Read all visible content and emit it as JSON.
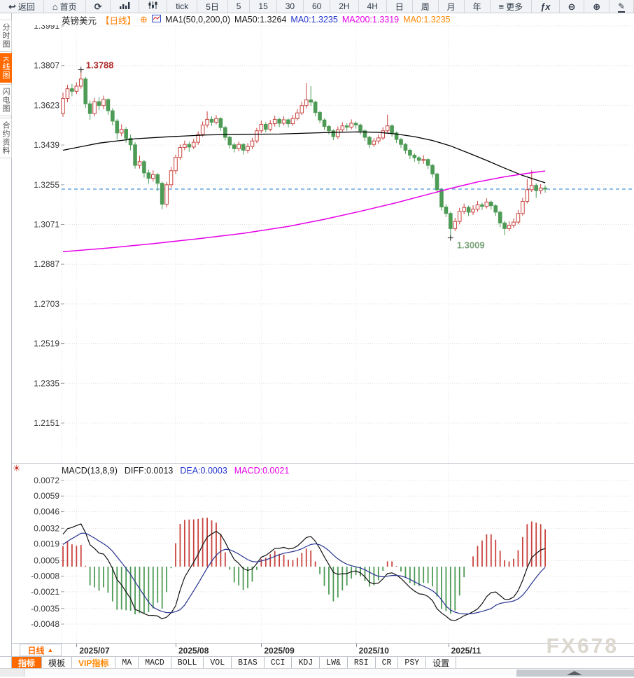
{
  "topbar": {
    "items": [
      {
        "name": "back",
        "icon": "back-arrow-icon",
        "label": "返回"
      },
      {
        "name": "home",
        "icon": "home-icon",
        "label": "首页"
      },
      {
        "name": "refresh",
        "icon": "refresh-icon",
        "label": ""
      },
      {
        "name": "stats",
        "icon": "bar-chart-icon",
        "label": ""
      },
      {
        "name": "candle-style",
        "icon": "candlestick-icon",
        "label": ""
      },
      {
        "name": "period-tick",
        "icon": "",
        "label": "tick"
      },
      {
        "name": "period-5d",
        "icon": "",
        "label": "5日"
      },
      {
        "name": "period-5",
        "icon": "",
        "label": "5"
      },
      {
        "name": "period-15",
        "icon": "",
        "label": "15"
      },
      {
        "name": "period-30",
        "icon": "",
        "label": "30"
      },
      {
        "name": "period-60",
        "icon": "",
        "label": "60"
      },
      {
        "name": "period-2h",
        "icon": "",
        "label": "2H"
      },
      {
        "name": "period-4h",
        "icon": "",
        "label": "4H"
      },
      {
        "name": "period-day",
        "icon": "",
        "label": "日"
      },
      {
        "name": "period-week",
        "icon": "",
        "label": "周"
      },
      {
        "name": "period-month",
        "icon": "",
        "label": "月"
      },
      {
        "name": "period-year",
        "icon": "",
        "label": "年"
      },
      {
        "name": "more",
        "icon": "menu-icon",
        "label": "更多"
      },
      {
        "name": "formula",
        "icon": "fx-icon",
        "label": ""
      },
      {
        "name": "zoom-out",
        "icon": "zoom-out-icon",
        "label": ""
      },
      {
        "name": "zoom-in",
        "icon": "zoom-in-icon",
        "label": ""
      },
      {
        "name": "draw",
        "icon": "pencil-icon",
        "label": ""
      }
    ]
  },
  "sidebar": {
    "items": [
      {
        "label": "分时图",
        "selected": false
      },
      {
        "label": "K线图",
        "selected": true
      },
      {
        "label": "闪电图",
        "selected": false
      },
      {
        "label": "合约资料",
        "selected": false
      }
    ]
  },
  "chart_header": {
    "symbol": "英镑美元",
    "period": "【日线】",
    "expand_icon": "⊕",
    "ma_settings": "MA1(50,0,200,0)",
    "ma50": "MA50:1.3264",
    "ma0_fast": "MA0:1.3235",
    "ma200": "MA200:1.3319",
    "ma0_slow": "MA0:1.3235"
  },
  "macd_header": {
    "title": "MACD(13,8,9)",
    "diff": "DIFF:0.0013",
    "dea": "DEA:0.0003",
    "macd": "MACD:0.0021",
    "settings_icon": "☀"
  },
  "bottom_bar": {
    "period_label": "日线",
    "period_arrow": "▲",
    "tabs": [
      {
        "label": "指标",
        "state": "selected"
      },
      {
        "label": "模板",
        "state": "normal"
      },
      {
        "label": "VIP指标",
        "state": "accent"
      },
      {
        "label": "MA",
        "state": "normal"
      },
      {
        "label": "MACD",
        "state": "normal"
      },
      {
        "label": "BOLL",
        "state": "normal"
      },
      {
        "label": "VOL",
        "state": "normal"
      },
      {
        "label": "BIAS",
        "state": "normal"
      },
      {
        "label": "CCI",
        "state": "normal"
      },
      {
        "label": "KDJ",
        "state": "normal"
      },
      {
        "label": "LW&",
        "state": "normal"
      },
      {
        "label": "RSI",
        "state": "normal"
      },
      {
        "label": "CR",
        "state": "normal"
      },
      {
        "label": "PSY",
        "state": "normal"
      },
      {
        "label": "设置",
        "state": "normal"
      }
    ]
  },
  "watermark": "FX678",
  "colors": {
    "up": "#c9433d",
    "down": "#4d9b55",
    "ma50": "#000000",
    "ma200": "#e600e6",
    "current_price_line": "#1d7ad4",
    "diff_line": "#111111",
    "dea_line": "#27338f",
    "accent": "#ff6a00",
    "high_label": "#b03030",
    "low_label": "#7ba37b"
  },
  "chart_data": {
    "type": "candlestick",
    "title": "英镑美元 日线 (GBP/USD Daily) with MA50/MA200 and MACD(13,8,9)",
    "y_ticks_main": [
      1.3991,
      1.3807,
      1.3623,
      1.3439,
      1.3255,
      1.3071,
      1.2887,
      1.2703,
      1.2519,
      1.2335,
      1.2151
    ],
    "y_ticks_macd": [
      0.0072,
      0.0059,
      0.0046,
      0.0032,
      0.0019,
      0.0005,
      -0.0008,
      -0.0021,
      -0.0035,
      -0.0048
    ],
    "x_ticks": [
      {
        "day": 3,
        "label": "2025/07"
      },
      {
        "day": 25,
        "label": "2025/08"
      },
      {
        "day": 44,
        "label": "2025/09"
      },
      {
        "day": 65,
        "label": "2025/10"
      },
      {
        "day": 85.5,
        "label": "2025/11"
      }
    ],
    "current_price": 1.3235,
    "high_annotation": {
      "day": 4,
      "price": 1.3788,
      "label": "1.3788"
    },
    "low_annotation": {
      "day": 86,
      "price": 1.3009,
      "label": "1.3009"
    },
    "ma50_points": [
      [
        0,
        1.3415
      ],
      [
        8,
        1.3448
      ],
      [
        16,
        1.3468
      ],
      [
        24,
        1.3478
      ],
      [
        32,
        1.3486
      ],
      [
        40,
        1.3489
      ],
      [
        48,
        1.349
      ],
      [
        54,
        1.3494
      ],
      [
        60,
        1.3498
      ],
      [
        66,
        1.35
      ],
      [
        70,
        1.3498
      ],
      [
        74,
        1.349
      ],
      [
        78,
        1.3478
      ],
      [
        82,
        1.346
      ],
      [
        86,
        1.3435
      ],
      [
        90,
        1.3402
      ],
      [
        94,
        1.3368
      ],
      [
        98,
        1.3332
      ],
      [
        102,
        1.3298
      ],
      [
        107,
        1.3264
      ]
    ],
    "ma200_points": [
      [
        0,
        1.2945
      ],
      [
        10,
        1.2962
      ],
      [
        20,
        1.2982
      ],
      [
        30,
        1.3005
      ],
      [
        40,
        1.303
      ],
      [
        50,
        1.3062
      ],
      [
        58,
        1.3095
      ],
      [
        66,
        1.3132
      ],
      [
        74,
        1.3172
      ],
      [
        80,
        1.3205
      ],
      [
        86,
        1.3238
      ],
      [
        92,
        1.3268
      ],
      [
        98,
        1.3292
      ],
      [
        103,
        1.3308
      ],
      [
        107,
        1.3319
      ]
    ],
    "macd_params": "13,8,9",
    "macd_warmup_closes": [
      1.346,
      1.3475,
      1.349,
      1.3505,
      1.352,
      1.3535,
      1.355,
      1.3565,
      1.358,
      1.3595,
      1.361,
      1.3625
    ],
    "candles": [
      [
        1.3585,
        1.3682,
        1.357,
        1.3655
      ],
      [
        1.3655,
        1.3718,
        1.3638,
        1.37
      ],
      [
        1.37,
        1.3722,
        1.3665,
        1.3688
      ],
      [
        1.3688,
        1.373,
        1.3675,
        1.3712
      ],
      [
        1.3712,
        1.3788,
        1.37,
        1.3745
      ],
      [
        1.3745,
        1.3755,
        1.361,
        1.363
      ],
      [
        1.363,
        1.3645,
        1.3555,
        1.3585
      ],
      [
        1.3585,
        1.3658,
        1.3572,
        1.364
      ],
      [
        1.364,
        1.366,
        1.36,
        1.3622
      ],
      [
        1.3622,
        1.3668,
        1.3605,
        1.365
      ],
      [
        1.365,
        1.3655,
        1.358,
        1.3598
      ],
      [
        1.3598,
        1.361,
        1.353,
        1.355
      ],
      [
        1.355,
        1.356,
        1.3465,
        1.3495
      ],
      [
        1.3495,
        1.3535,
        1.348,
        1.3512
      ],
      [
        1.3512,
        1.3522,
        1.345,
        1.347
      ],
      [
        1.347,
        1.3488,
        1.3415,
        1.344
      ],
      [
        1.344,
        1.3452,
        1.333,
        1.3345
      ],
      [
        1.3345,
        1.339,
        1.333,
        1.3362
      ],
      [
        1.3362,
        1.337,
        1.3288,
        1.331
      ],
      [
        1.331,
        1.3325,
        1.326,
        1.3285
      ],
      [
        1.3285,
        1.3322,
        1.327,
        1.3302
      ],
      [
        1.3302,
        1.331,
        1.3225,
        1.3262
      ],
      [
        1.3262,
        1.327,
        1.3141,
        1.3165
      ],
      [
        1.3165,
        1.3268,
        1.315,
        1.3255
      ],
      [
        1.3255,
        1.3338,
        1.324,
        1.332
      ],
      [
        1.332,
        1.3395,
        1.3305,
        1.3382
      ],
      [
        1.3382,
        1.3442,
        1.337,
        1.3428
      ],
      [
        1.3428,
        1.346,
        1.3415,
        1.3442
      ],
      [
        1.3442,
        1.3455,
        1.3408,
        1.343
      ],
      [
        1.343,
        1.3468,
        1.342,
        1.3452
      ],
      [
        1.3452,
        1.3502,
        1.344,
        1.3488
      ],
      [
        1.3488,
        1.3548,
        1.3478,
        1.3532
      ],
      [
        1.3532,
        1.3595,
        1.352,
        1.3558
      ],
      [
        1.3558,
        1.3572,
        1.3528,
        1.3545
      ],
      [
        1.3545,
        1.3578,
        1.3535,
        1.3562
      ],
      [
        1.3562,
        1.3568,
        1.3505,
        1.352
      ],
      [
        1.352,
        1.3528,
        1.346,
        1.3475
      ],
      [
        1.3475,
        1.3482,
        1.3422,
        1.344
      ],
      [
        1.344,
        1.345,
        1.3405,
        1.3422
      ],
      [
        1.3422,
        1.3455,
        1.341,
        1.3442
      ],
      [
        1.3442,
        1.3448,
        1.3395,
        1.3415
      ],
      [
        1.3415,
        1.3448,
        1.3402,
        1.3432
      ],
      [
        1.3432,
        1.3472,
        1.342,
        1.3458
      ],
      [
        1.3458,
        1.3518,
        1.3448,
        1.3505
      ],
      [
        1.3505,
        1.3552,
        1.3495,
        1.3535
      ],
      [
        1.3535,
        1.3545,
        1.3498,
        1.3512
      ],
      [
        1.3512,
        1.3555,
        1.3502,
        1.3538
      ],
      [
        1.3538,
        1.3575,
        1.3525,
        1.3558
      ],
      [
        1.3558,
        1.3565,
        1.3522,
        1.354
      ],
      [
        1.354,
        1.3572,
        1.353,
        1.3556
      ],
      [
        1.3556,
        1.3562,
        1.352,
        1.3538
      ],
      [
        1.3538,
        1.3578,
        1.3528,
        1.3562
      ],
      [
        1.3562,
        1.3605,
        1.3552,
        1.3588
      ],
      [
        1.3588,
        1.364,
        1.3578,
        1.3622
      ],
      [
        1.3622,
        1.3726,
        1.361,
        1.3648
      ],
      [
        1.3648,
        1.3712,
        1.362,
        1.3638
      ],
      [
        1.3638,
        1.3645,
        1.3572,
        1.359
      ],
      [
        1.359,
        1.3598,
        1.354,
        1.3555
      ],
      [
        1.3555,
        1.3562,
        1.3508,
        1.3525
      ],
      [
        1.3525,
        1.3532,
        1.3488,
        1.3505
      ],
      [
        1.3505,
        1.3512,
        1.3462,
        1.3478
      ],
      [
        1.3478,
        1.3525,
        1.3468,
        1.351
      ],
      [
        1.351,
        1.3545,
        1.35,
        1.3528
      ],
      [
        1.3528,
        1.354,
        1.3505,
        1.3522
      ],
      [
        1.3522,
        1.3558,
        1.3512,
        1.354
      ],
      [
        1.354,
        1.3548,
        1.3515,
        1.3532
      ],
      [
        1.3532,
        1.3538,
        1.3488,
        1.3505
      ],
      [
        1.3505,
        1.3512,
        1.3458,
        1.3475
      ],
      [
        1.3475,
        1.3482,
        1.3425,
        1.3442
      ],
      [
        1.3442,
        1.3472,
        1.343,
        1.3458
      ],
      [
        1.3458,
        1.3488,
        1.3445,
        1.3472
      ],
      [
        1.3472,
        1.3522,
        1.3462,
        1.3505
      ],
      [
        1.3505,
        1.358,
        1.3495,
        1.3528
      ],
      [
        1.3528,
        1.3535,
        1.3478,
        1.3495
      ],
      [
        1.3495,
        1.3502,
        1.3448,
        1.3465
      ],
      [
        1.3465,
        1.3472,
        1.3425,
        1.3442
      ],
      [
        1.3442,
        1.3448,
        1.3398,
        1.3415
      ],
      [
        1.3415,
        1.3422,
        1.3375,
        1.3392
      ],
      [
        1.3392,
        1.34,
        1.3362,
        1.338
      ],
      [
        1.338,
        1.3388,
        1.335,
        1.3368
      ],
      [
        1.3368,
        1.3392,
        1.3352,
        1.3372
      ],
      [
        1.3372,
        1.3378,
        1.3328,
        1.3345
      ],
      [
        1.3345,
        1.3352,
        1.3288,
        1.3305
      ],
      [
        1.3305,
        1.3312,
        1.3215,
        1.3232
      ],
      [
        1.3232,
        1.324,
        1.3135,
        1.3152
      ],
      [
        1.3152,
        1.3165,
        1.3105,
        1.3122
      ],
      [
        1.3122,
        1.313,
        1.3009,
        1.3052
      ],
      [
        1.3052,
        1.3102,
        1.304,
        1.3085
      ],
      [
        1.3085,
        1.3148,
        1.3072,
        1.3132
      ],
      [
        1.3132,
        1.3168,
        1.3118,
        1.315
      ],
      [
        1.315,
        1.3158,
        1.311,
        1.3128
      ],
      [
        1.3128,
        1.316,
        1.3115,
        1.3142
      ],
      [
        1.3142,
        1.318,
        1.313,
        1.3162
      ],
      [
        1.3162,
        1.3172,
        1.3138,
        1.3155
      ],
      [
        1.3155,
        1.3192,
        1.3145,
        1.3175
      ],
      [
        1.3175,
        1.3182,
        1.314,
        1.3158
      ],
      [
        1.3158,
        1.3165,
        1.311,
        1.3128
      ],
      [
        1.3128,
        1.3135,
        1.3058,
        1.3078
      ],
      [
        1.3078,
        1.3088,
        1.3022,
        1.3052
      ],
      [
        1.3052,
        1.3085,
        1.304,
        1.3068
      ],
      [
        1.3068,
        1.3098,
        1.3055,
        1.3082
      ],
      [
        1.3082,
        1.3138,
        1.3072,
        1.3122
      ],
      [
        1.3122,
        1.3195,
        1.3112,
        1.3178
      ],
      [
        1.3178,
        1.3282,
        1.3168,
        1.3232
      ],
      [
        1.3232,
        1.3322,
        1.3222,
        1.3252
      ],
      [
        1.3252,
        1.3262,
        1.3195,
        1.3228
      ],
      [
        1.3228,
        1.3258,
        1.3212,
        1.324
      ],
      [
        1.324,
        1.3252,
        1.3218,
        1.3235
      ]
    ]
  }
}
